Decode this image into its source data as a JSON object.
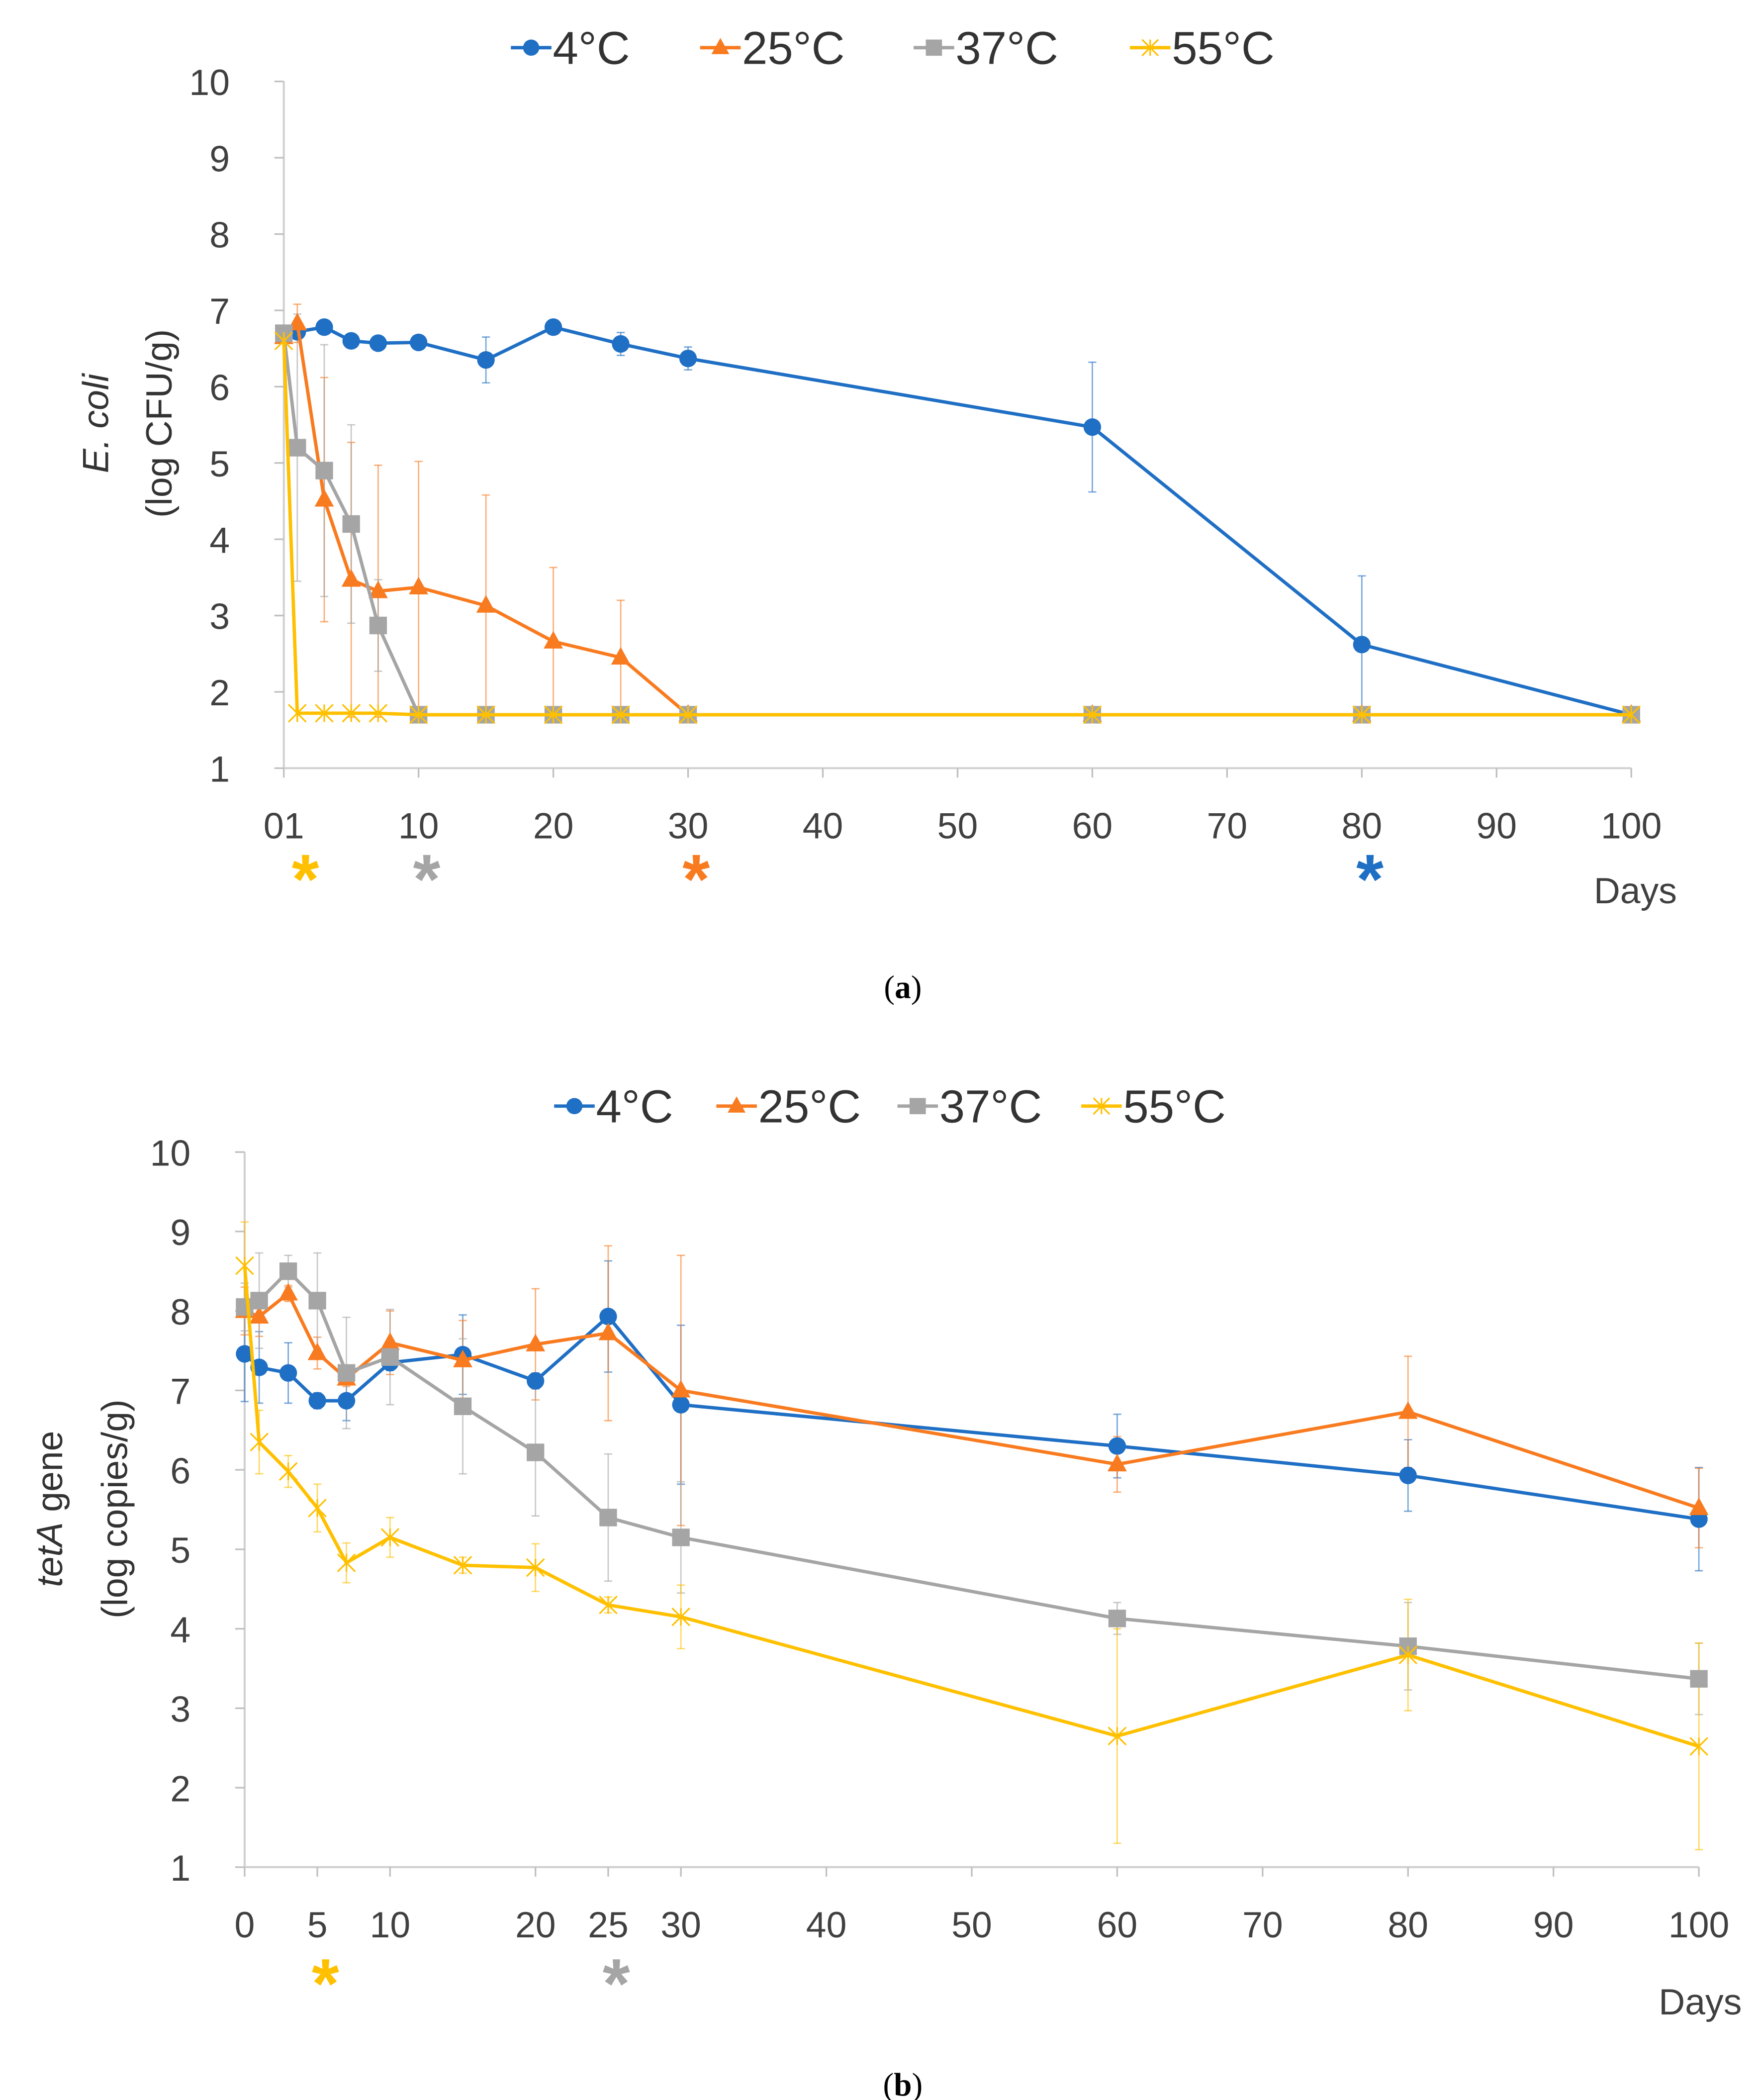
{
  "chart_data": [
    {
      "type": "line",
      "panel": "a",
      "caption_label": "a",
      "xlabel": "Days",
      "ylabel_italic": "E. coli",
      "ylabel": "(log CFU/g)",
      "ylim": [
        1,
        10
      ],
      "xlim": [
        0,
        100
      ],
      "yticks": [
        "1",
        "2",
        "3",
        "4",
        "5",
        "6",
        "7",
        "8",
        "9",
        "10"
      ],
      "xticks": [
        {
          "v": 0,
          "label": "01"
        },
        {
          "v": 10,
          "label": "10"
        },
        {
          "v": 20,
          "label": "20"
        },
        {
          "v": 30,
          "label": "30"
        },
        {
          "v": 40,
          "label": "40"
        },
        {
          "v": 50,
          "label": "50"
        },
        {
          "v": 60,
          "label": "60"
        },
        {
          "v": 70,
          "label": "70"
        },
        {
          "v": 80,
          "label": "80"
        },
        {
          "v": 90,
          "label": "90"
        },
        {
          "v": 100,
          "label": "100"
        }
      ],
      "grid": false,
      "legend_position": "top-center",
      "x": [
        0,
        1,
        3,
        5,
        7,
        10,
        15,
        20,
        25,
        30,
        60,
        80,
        100
      ],
      "series": [
        {
          "name": "4°C",
          "color": "#1f6fc5",
          "marker": "circle",
          "values": [
            6.7,
            6.72,
            6.78,
            6.6,
            6.57,
            6.58,
            6.35,
            6.78,
            6.56,
            6.37,
            5.47,
            2.62,
            1.7
          ],
          "err": [
            0,
            0.05,
            0,
            0,
            0,
            0,
            0.3,
            0,
            0.15,
            0.15,
            0.85,
            0.9,
            0
          ]
        },
        {
          "name": "25°C",
          "color": "#f97b20",
          "marker": "triangle",
          "values": [
            6.65,
            6.83,
            4.52,
            3.47,
            3.32,
            3.37,
            3.13,
            2.66,
            2.45,
            1.7,
            1.7,
            1.7,
            1.7
          ],
          "err": [
            0,
            0.25,
            1.6,
            1.8,
            1.65,
            1.65,
            1.45,
            0.97,
            0.75,
            0,
            0,
            0,
            0
          ]
        },
        {
          "name": "37°C",
          "color": "#a5a5a5",
          "marker": "square",
          "values": [
            6.7,
            5.2,
            4.9,
            4.2,
            2.87,
            1.7,
            1.7,
            1.7,
            1.7,
            1.7,
            1.7,
            1.7,
            1.7
          ],
          "err": [
            0,
            1.75,
            1.65,
            1.3,
            0.6,
            0,
            0,
            0,
            0,
            0,
            0,
            0,
            0
          ]
        },
        {
          "name": "55°C",
          "color": "#ffc000",
          "marker": "x",
          "values": [
            6.6,
            1.72,
            1.72,
            1.72,
            1.72,
            1.7,
            1.7,
            1.7,
            1.7,
            1.7,
            1.7,
            1.7,
            1.7
          ],
          "err": [
            0,
            0,
            0,
            0,
            0,
            0,
            0,
            0,
            0,
            0,
            0,
            0,
            0
          ]
        }
      ],
      "annotations": [
        {
          "text": "*",
          "x": 1,
          "color": "#ffc000"
        },
        {
          "text": "*",
          "x": 10,
          "color": "#a5a5a5"
        },
        {
          "text": "*",
          "x": 30,
          "color": "#f97b20"
        },
        {
          "text": "*",
          "x": 80,
          "color": "#1f6fc5"
        }
      ]
    },
    {
      "type": "line",
      "panel": "b",
      "caption_label": "b",
      "xlabel": "Days",
      "ylabel_italic": "tetA",
      "ylabel_rest": " gene",
      "ylabel": "(log copies/g)",
      "ylim": [
        1,
        10
      ],
      "xlim": [
        0,
        100
      ],
      "yticks": [
        "1",
        "2",
        "3",
        "4",
        "5",
        "6",
        "7",
        "8",
        "9",
        "10"
      ],
      "xticks": [
        {
          "v": 0,
          "label": "0"
        },
        {
          "v": 5,
          "label": "5"
        },
        {
          "v": 10,
          "label": "10"
        },
        {
          "v": 20,
          "label": "20"
        },
        {
          "v": 25,
          "label": "25"
        },
        {
          "v": 30,
          "label": "30"
        },
        {
          "v": 40,
          "label": "40"
        },
        {
          "v": 50,
          "label": "50"
        },
        {
          "v": 60,
          "label": "60"
        },
        {
          "v": 70,
          "label": "70"
        },
        {
          "v": 80,
          "label": "80"
        },
        {
          "v": 90,
          "label": "90"
        },
        {
          "v": 100,
          "label": "100"
        }
      ],
      "grid": false,
      "legend_position": "top-center",
      "x": [
        0,
        1,
        3,
        5,
        7,
        10,
        15,
        20,
        25,
        30,
        60,
        80,
        100
      ],
      "series": [
        {
          "name": "4°C",
          "color": "#1f6fc5",
          "marker": "circle",
          "values": [
            7.46,
            7.29,
            7.22,
            6.87,
            6.87,
            7.35,
            7.45,
            7.12,
            7.93,
            6.82,
            6.3,
            5.93,
            5.38
          ],
          "err": [
            0.6,
            0.45,
            0.38,
            0.1,
            0.25,
            0.1,
            0.5,
            0.1,
            0.7,
            1.0,
            0.4,
            0.45,
            0.65
          ]
        },
        {
          "name": "25°C",
          "color": "#f97b20",
          "marker": "triangle",
          "values": [
            8.0,
            7.93,
            8.22,
            7.47,
            7.15,
            7.6,
            7.38,
            7.58,
            7.72,
            7.0,
            6.07,
            6.73,
            5.52
          ],
          "err": [
            0.3,
            0.25,
            0.1,
            0.2,
            0.1,
            0.4,
            0.5,
            0.7,
            1.1,
            1.7,
            0.35,
            0.7,
            0.5
          ]
        },
        {
          "name": "37°C",
          "color": "#a5a5a5",
          "marker": "square",
          "values": [
            8.05,
            8.13,
            8.5,
            8.13,
            7.22,
            7.42,
            6.8,
            6.22,
            5.4,
            5.15,
            4.13,
            3.78,
            3.37
          ],
          "err": [
            0.3,
            0.6,
            0.2,
            0.6,
            0.7,
            0.6,
            0.85,
            0.8,
            0.8,
            0.7,
            0.2,
            0.55,
            0.45
          ]
        },
        {
          "name": "55°C",
          "color": "#ffc000",
          "marker": "x",
          "values": [
            8.57,
            6.35,
            5.98,
            5.52,
            4.83,
            5.15,
            4.8,
            4.77,
            4.3,
            4.15,
            2.65,
            3.67,
            2.52
          ],
          "err": [
            0.55,
            0.4,
            0.2,
            0.3,
            0.25,
            0.25,
            0.1,
            0.3,
            0.1,
            0.4,
            1.35,
            0.7,
            1.3
          ]
        }
      ],
      "annotations": [
        {
          "text": "*",
          "x": 5,
          "color": "#ffc000"
        },
        {
          "text": "*",
          "x": 25,
          "color": "#a5a5a5"
        }
      ]
    }
  ]
}
